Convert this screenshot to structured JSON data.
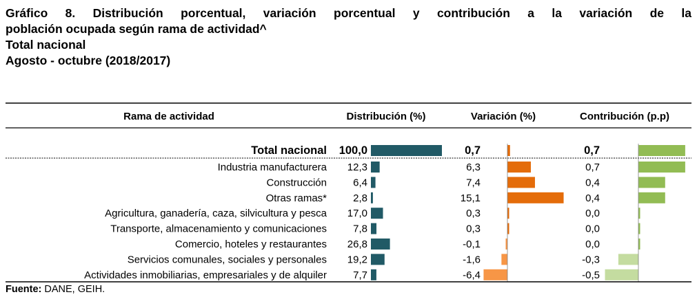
{
  "title": {
    "line1": "Gráfico 8. Distribución porcentual, variación porcentual y contribución a la variación de la",
    "line2": "población ocupada según rama de actividad^",
    "line3": "Total nacional",
    "line4": "Agosto - octubre (2018/2017)"
  },
  "chart_data": {
    "type": "table",
    "headers": {
      "category": "Rama de actividad",
      "distribution": "Distribución (%)",
      "variation": "Variación (%)",
      "contribution": "Contribución (p.p)"
    },
    "total": {
      "label": "Total nacional",
      "distribution": 100.0,
      "distribution_label": "100,0",
      "variation": 0.7,
      "variation_label": "0,7",
      "contribution": 0.7,
      "contribution_label": "0,7"
    },
    "rows": [
      {
        "label": "Industria manufacturera",
        "distribution": 12.3,
        "distribution_label": "12,3",
        "variation": 6.3,
        "variation_label": "6,3",
        "contribution": 0.7,
        "contribution_label": "0,7"
      },
      {
        "label": "Construcción",
        "distribution": 6.4,
        "distribution_label": "6,4",
        "variation": 7.4,
        "variation_label": "7,4",
        "contribution": 0.4,
        "contribution_label": "0,4"
      },
      {
        "label": "Otras ramas*",
        "distribution": 2.8,
        "distribution_label": "2,8",
        "variation": 15.1,
        "variation_label": "15,1",
        "contribution": 0.4,
        "contribution_label": "0,4"
      },
      {
        "label": "Agricultura, ganadería, caza, silvicultura y pesca",
        "distribution": 17.0,
        "distribution_label": "17,0",
        "variation": 0.3,
        "variation_label": "0,3",
        "contribution": 0.0,
        "contribution_label": "0,0"
      },
      {
        "label": "Transporte, almacenamiento y comunicaciones",
        "distribution": 7.8,
        "distribution_label": "7,8",
        "variation": 0.3,
        "variation_label": "0,3",
        "contribution": 0.0,
        "contribution_label": "0,0"
      },
      {
        "label": "Comercio, hoteles y restaurantes",
        "distribution": 26.8,
        "distribution_label": "26,8",
        "variation": -0.1,
        "variation_label": "-0,1",
        "contribution": 0.0,
        "contribution_label": "0,0"
      },
      {
        "label": "Servicios comunales, sociales y personales",
        "distribution": 19.2,
        "distribution_label": "19,2",
        "variation": -1.6,
        "variation_label": "-1,6",
        "contribution": -0.3,
        "contribution_label": "-0,3"
      },
      {
        "label": "Actividades inmobiliarias, empresariales y de alquiler",
        "distribution": 7.7,
        "distribution_label": "7,7",
        "variation": -6.4,
        "variation_label": "-6,4",
        "contribution": -0.5,
        "contribution_label": "-0,5"
      }
    ],
    "colors": {
      "distribution": "#215a66",
      "variation_positive": "#e46c0a",
      "variation_negative": "#f79646",
      "contribution_positive": "#92bc54",
      "contribution_negative": "#c4dca0"
    }
  },
  "source": {
    "label": "Fuente:",
    "text": "DANE, GEIH."
  }
}
